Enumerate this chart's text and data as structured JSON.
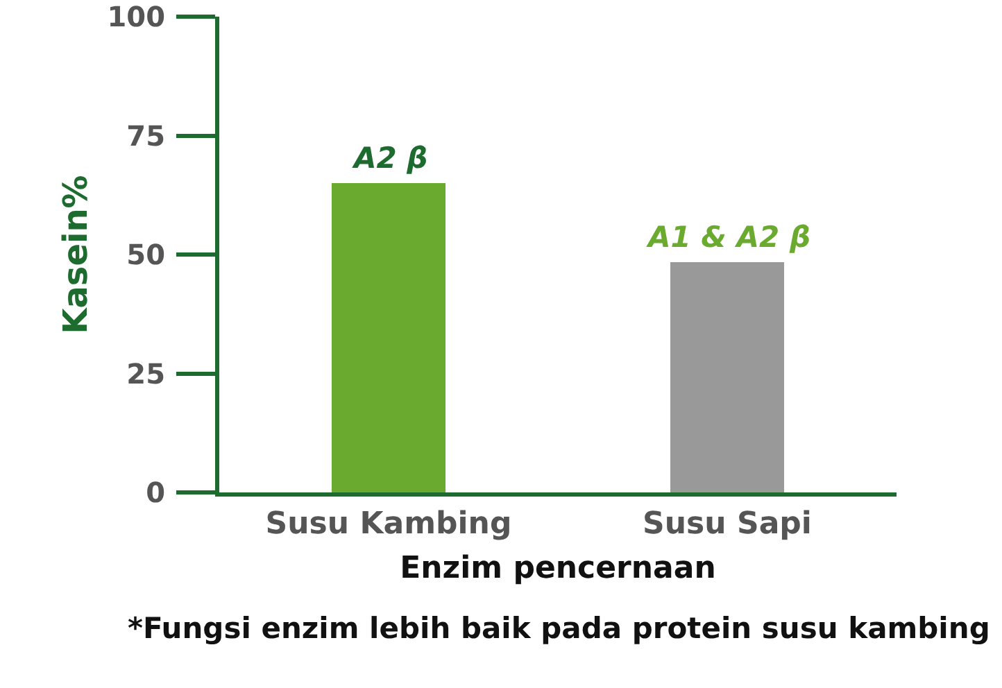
{
  "chart_data": {
    "type": "bar",
    "xlabel": "Enzim pencernaan",
    "ylabel": "Kasein%",
    "categories": [
      "Susu Kambing",
      "Susu Sapi"
    ],
    "values": [
      65,
      48.5
    ],
    "colors": [
      "#6aaa2e",
      "#999999"
    ],
    "ylim": [
      0,
      100
    ],
    "yticks": [
      0,
      25,
      50,
      75,
      100
    ],
    "grid": false,
    "annotations": [
      {
        "text": "A2 β",
        "x": "Susu Kambing",
        "y": 65
      },
      {
        "text": "A1 & A2 β",
        "x": "Susu Sapi",
        "y": 48.5
      },
      "*Fungsi enzim lebih baik pada protein susu kambing"
    ]
  }
}
